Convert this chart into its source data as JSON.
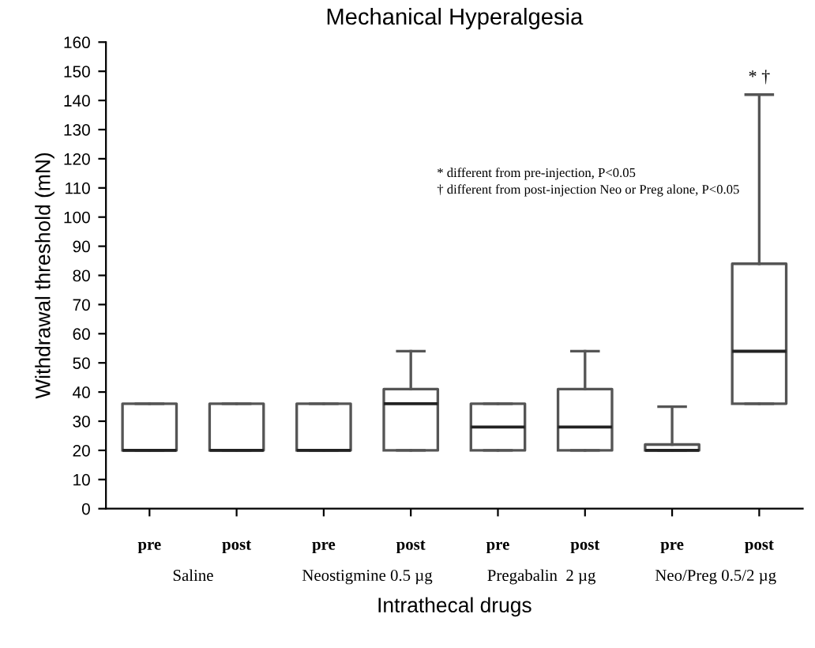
{
  "chart_data": {
    "type": "box",
    "title": "Mechanical Hyperalgesia",
    "xlabel": "Intrathecal drugs",
    "ylabel": "Withdrawal threshold (mN)",
    "categories": [
      "pre",
      "post",
      "pre",
      "post",
      "pre",
      "post",
      "pre",
      "post"
    ],
    "boxes": [
      {
        "low": 20,
        "q1": 20,
        "median": 20,
        "q3": 36,
        "high": 36
      },
      {
        "low": 20,
        "q1": 20,
        "median": 20,
        "q3": 36,
        "high": 36
      },
      {
        "low": 20,
        "q1": 20,
        "median": 20,
        "q3": 36,
        "high": 36
      },
      {
        "low": 20,
        "q1": 20,
        "median": 36,
        "q3": 41,
        "high": 54
      },
      {
        "low": 20,
        "q1": 20,
        "median": 28,
        "q3": 36,
        "high": 36
      },
      {
        "low": 20,
        "q1": 20,
        "median": 28,
        "q3": 41,
        "high": 54
      },
      {
        "low": 20,
        "q1": 20,
        "median": 20,
        "q3": 22,
        "high": 35
      },
      {
        "low": 36,
        "q1": 36,
        "median": 54,
        "q3": 84,
        "high": 142
      }
    ],
    "ylim": [
      0,
      160
    ],
    "yticks": [
      0,
      10,
      20,
      30,
      40,
      50,
      60,
      70,
      80,
      90,
      100,
      110,
      120,
      130,
      140,
      150,
      160
    ],
    "grid": false,
    "annotations": [
      "Saline",
      "Neostigmine 0.5 µg",
      "Pregabalin  2 µg",
      "Neo/Preg 0.5/2 µg",
      "* †",
      "* different from pre-injection, P<0.05\n† different from post-injection Neo or Preg alone, P<0.05"
    ]
  }
}
